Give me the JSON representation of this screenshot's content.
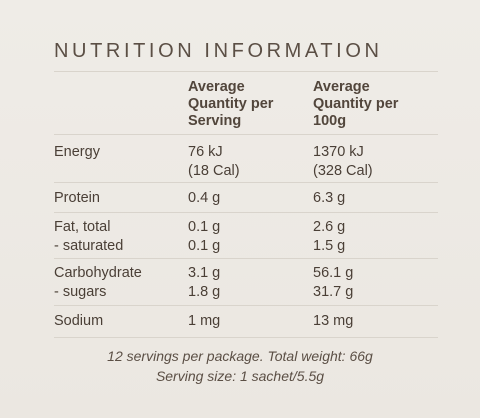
{
  "title": "NUTRITION INFORMATION",
  "columns": {
    "per_serving": "Average\nQuantity per\nServing",
    "per_100g": "Average\nQuantity per\n100g"
  },
  "rows": [
    {
      "label": "Energy",
      "per_serving": "76 kJ\n(18 Cal)",
      "per_100g": "1370 kJ\n(328 Cal)"
    },
    {
      "label": "Protein",
      "per_serving": "0.4 g",
      "per_100g": "6.3 g"
    },
    {
      "label": "Fat, total\n- saturated",
      "per_serving": "0.1 g\n0.1 g",
      "per_100g": "2.6 g\n1.5 g"
    },
    {
      "label": "Carbohydrate\n- sugars",
      "per_serving": "3.1 g\n1.8 g",
      "per_100g": "56.1 g\n31.7 g"
    },
    {
      "label": "Sodium",
      "per_serving": "1 mg",
      "per_100g": "13 mg"
    }
  ],
  "footer": {
    "line1": "12 servings per package. Total weight: 66g",
    "line2": "Serving size: 1 sachet/5.5g"
  }
}
